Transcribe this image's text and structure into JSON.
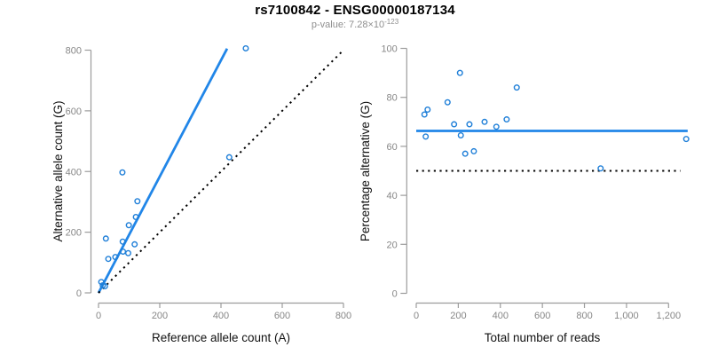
{
  "header": {
    "title": "rs7100842 - ENSG00000187134",
    "subtitle_text": "p-value: 7.28×10",
    "subtitle_exponent": "-123"
  },
  "colors": {
    "accent_blue": "#2186E8",
    "point_blue": "#1F7FD8",
    "dotted_black": "#000000",
    "tick_label_gray": "#878787",
    "axis_line_gray": "#9C9C9C",
    "axis_title_color": "#111111",
    "subtitle_gray": "#8F8F8F"
  },
  "chart_data": [
    {
      "id": "allele-count-scatter",
      "type": "scatter",
      "xlabel": "Reference allele count (A)",
      "ylabel": "Alternative allele count (G)",
      "xlim": [
        0,
        800
      ],
      "ylim": [
        0,
        800
      ],
      "xticks": [
        0,
        200,
        400,
        600,
        800
      ],
      "xtick_labels": [
        "0",
        "200",
        "400",
        "600",
        "800"
      ],
      "yticks": [
        0,
        200,
        400,
        600,
        800
      ],
      "ytick_labels": [
        "0",
        "200",
        "400",
        "600",
        "800"
      ],
      "grid": false,
      "points": [
        [
          481,
          806
        ],
        [
          427,
          447
        ],
        [
          78,
          397
        ],
        [
          127,
          302
        ],
        [
          122,
          250
        ],
        [
          99,
          223
        ],
        [
          24,
          179
        ],
        [
          79,
          169
        ],
        [
          118,
          160
        ],
        [
          80,
          136
        ],
        [
          97,
          131
        ],
        [
          55,
          118
        ],
        [
          32,
          112
        ],
        [
          9,
          36
        ],
        [
          14,
          25
        ],
        [
          21,
          22
        ]
      ],
      "lines": [
        {
          "name": "regression-line",
          "style": "solid",
          "color_key": "accent_blue",
          "points": [
            [
              0,
              0
            ],
            [
              420,
              805
            ]
          ]
        },
        {
          "name": "identity-line",
          "style": "dotted",
          "color_key": "dotted_black",
          "points": [
            [
              0,
              0
            ],
            [
              797,
              797
            ]
          ]
        }
      ]
    },
    {
      "id": "percentage-alternative-scatter",
      "type": "scatter",
      "xlabel": "Total number of reads",
      "ylabel": "Percentage alternative (G)",
      "xlim": [
        0,
        1300
      ],
      "ylim": [
        0,
        100
      ],
      "xticks": [
        0,
        200,
        400,
        600,
        800,
        1000,
        1200
      ],
      "xtick_labels": [
        "0",
        "200",
        "400",
        "600",
        "800",
        "1,000",
        "1,200"
      ],
      "yticks": [
        0,
        20,
        40,
        60,
        80,
        100
      ],
      "ytick_labels": [
        "0",
        "20",
        "40",
        "60",
        "80",
        "100"
      ],
      "grid": false,
      "points": [
        [
          39,
          73
        ],
        [
          45,
          64
        ],
        [
          54,
          75
        ],
        [
          149,
          78
        ],
        [
          180,
          69
        ],
        [
          208,
          90
        ],
        [
          212,
          64.5
        ],
        [
          233,
          57
        ],
        [
          253,
          69
        ],
        [
          274,
          58
        ],
        [
          325,
          70
        ],
        [
          381,
          68
        ],
        [
          430,
          71
        ],
        [
          478,
          84
        ],
        [
          877,
          51
        ],
        [
          1284,
          63
        ]
      ],
      "lines": [
        {
          "name": "mean-percentage-line",
          "style": "solid",
          "color_key": "accent_blue",
          "points": [
            [
              0,
              66.3
            ],
            [
              1291,
              66.3
            ]
          ]
        },
        {
          "name": "fifty-percent-line",
          "style": "dotted",
          "color_key": "dotted_black",
          "points": [
            [
              0,
              50
            ],
            [
              1256,
              50
            ]
          ]
        }
      ]
    }
  ]
}
